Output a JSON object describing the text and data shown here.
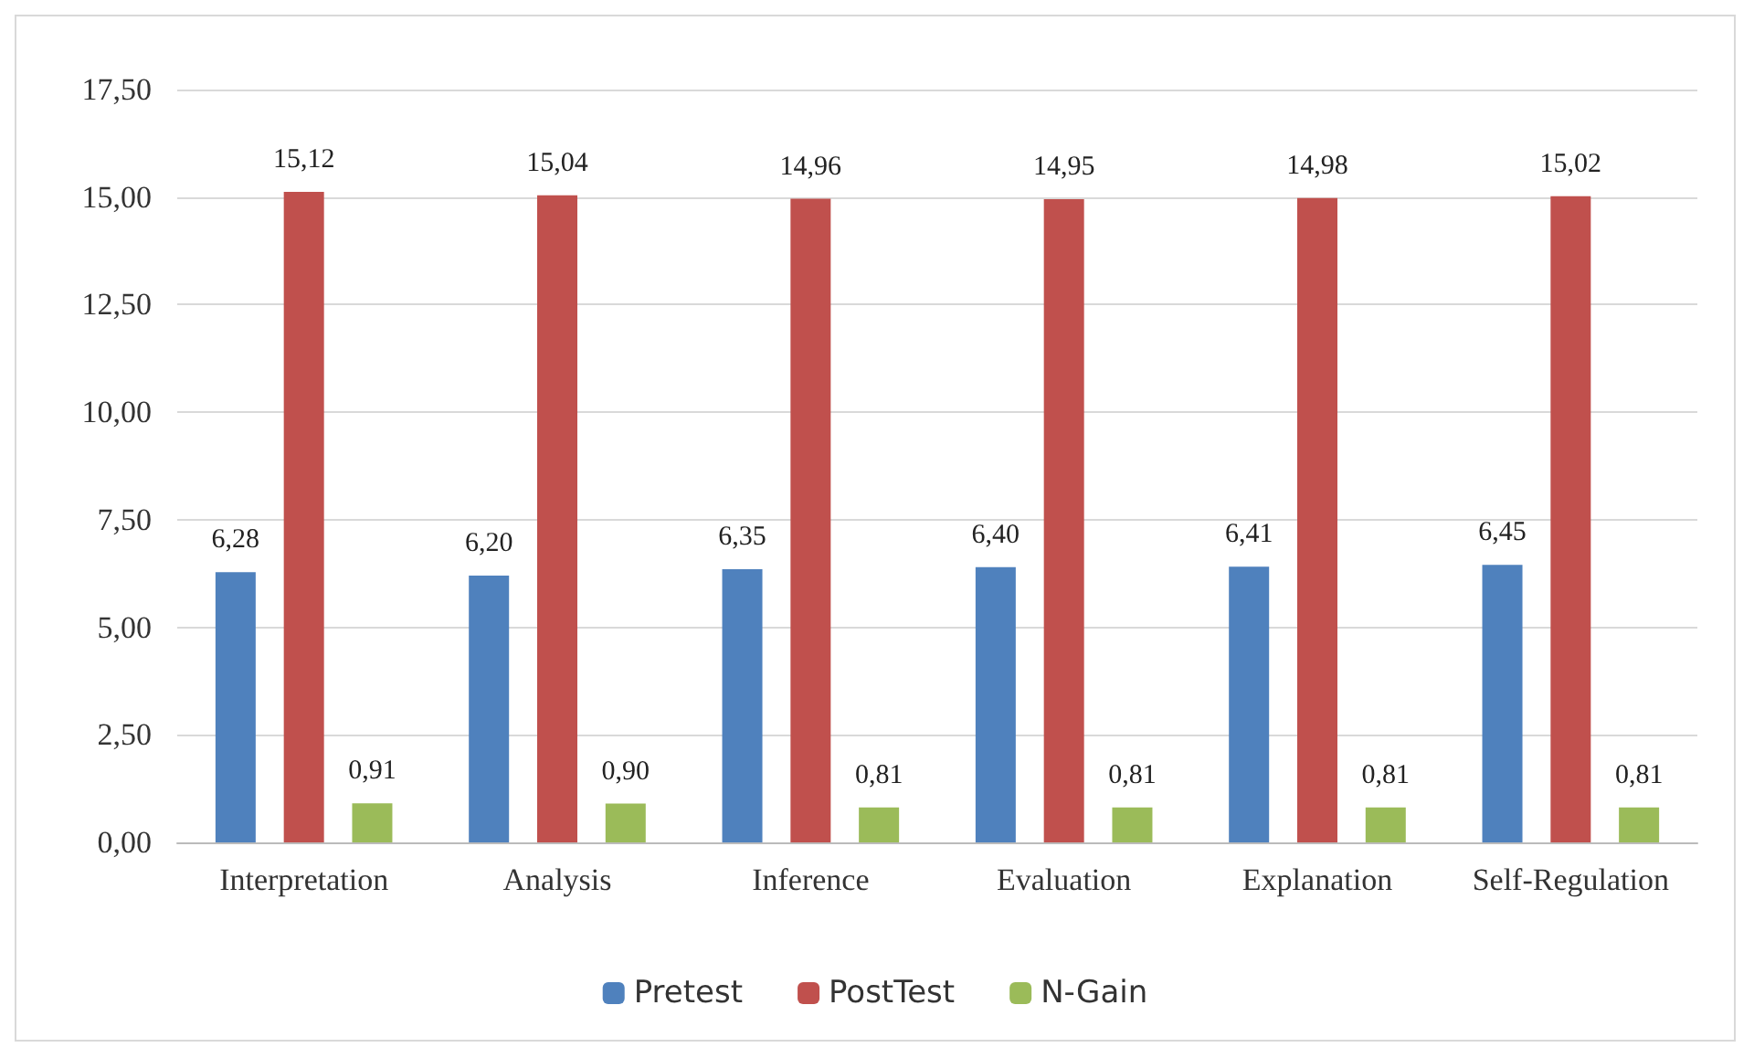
{
  "chart_data": {
    "type": "bar",
    "categories": [
      "Interpretation",
      "Analysis",
      "Inference",
      "Evaluation",
      "Explanation",
      "Self-Regulation"
    ],
    "series": [
      {
        "name": "Pretest",
        "color": "#4f81bd",
        "values": [
          6.28,
          6.2,
          6.35,
          6.4,
          6.41,
          6.45
        ],
        "value_labels": [
          "6,28",
          "6,20",
          "6,35",
          "6,40",
          "6,41",
          "6,45"
        ]
      },
      {
        "name": "PostTest",
        "color": "#c0504d",
        "values": [
          15.12,
          15.04,
          14.96,
          14.95,
          14.98,
          15.02
        ],
        "value_labels": [
          "15,12",
          "15,04",
          "14,96",
          "14,95",
          "14,98",
          "15,02"
        ]
      },
      {
        "name": "N-Gain",
        "color": "#9bbb59",
        "values": [
          0.91,
          0.9,
          0.81,
          0.81,
          0.81,
          0.81
        ],
        "value_labels": [
          "0,91",
          "0,90",
          "0,81",
          "0,81",
          "0,81",
          "0,81"
        ]
      }
    ],
    "ylim": [
      0,
      17.5
    ],
    "yticks": [
      {
        "value": 0,
        "label": "0,00"
      },
      {
        "value": 2.5,
        "label": "2,50"
      },
      {
        "value": 5,
        "label": "5,00"
      },
      {
        "value": 7.5,
        "label": "7,50"
      },
      {
        "value": 10,
        "label": "10,00"
      },
      {
        "value": 12.5,
        "label": "12,50"
      },
      {
        "value": 15,
        "label": "15,00"
      },
      {
        "value": 17.5,
        "label": "17,50"
      }
    ],
    "grid": "y",
    "legend": "bottom"
  }
}
